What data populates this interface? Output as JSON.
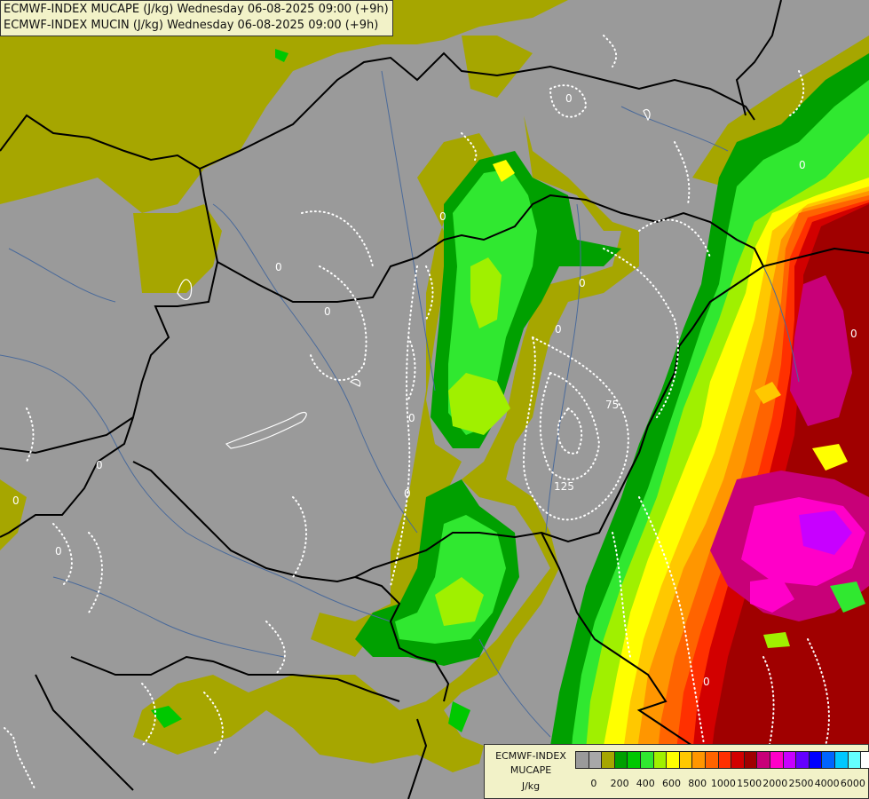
{
  "title": {
    "line1": "ECMWF-INDEX MUCAPE (J/kg) Wednesday 06-08-2025 09:00 (+9h)",
    "line2": "ECMWF-INDEX MUCIN (J/kg) Wednesday 06-08-2025 09:00 (+9h)"
  },
  "legend": {
    "line1": "ECMWF-INDEX",
    "line2": "MUCAPE",
    "line3": "J/kg",
    "colors": [
      "#9a9a9a",
      "#a8a8a8",
      "#a6a600",
      "#00a000",
      "#00c800",
      "#30e830",
      "#a0f000",
      "#ffff00",
      "#ffc800",
      "#ff9600",
      "#ff6400",
      "#ff3000",
      "#d20000",
      "#a00000",
      "#c80078",
      "#ff00c8",
      "#c800ff",
      "#6400ff",
      "#0000ff",
      "#0064ff",
      "#00c8ff",
      "#64ffff",
      "#ffffff"
    ],
    "ticks": [
      "0",
      "200",
      "400",
      "600",
      "800",
      "1000",
      "1500",
      "2000",
      "2500",
      "4000",
      "6000"
    ]
  },
  "contour_labels": [
    "0",
    "0",
    "0",
    "0",
    "0",
    "0",
    "0",
    "0",
    "0",
    "0",
    "0",
    "75",
    "125",
    "0",
    "0",
    "0"
  ]
}
